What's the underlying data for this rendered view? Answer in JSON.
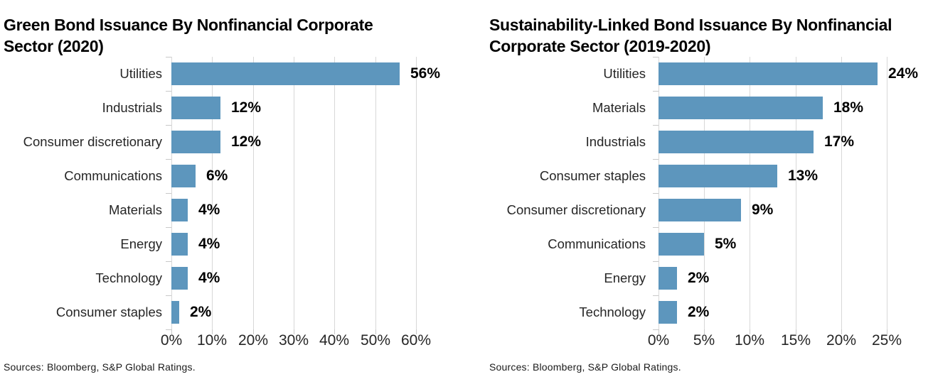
{
  "figure": {
    "background_color": "#ffffff",
    "bar_color": "#5d96bd",
    "grid_color": "#d8d8d8",
    "text_color": "#262626"
  },
  "chart_data": [
    {
      "type": "bar",
      "orientation": "horizontal",
      "title": "Green Bond Issuance By Nonfinancial Corporate Sector (2020)",
      "categories": [
        "Utilities",
        "Industrials",
        "Consumer discretionary",
        "Communications",
        "Materials",
        "Energy",
        "Technology",
        "Consumer staples"
      ],
      "values": [
        56,
        12,
        12,
        6,
        4,
        4,
        4,
        2
      ],
      "value_labels": [
        "56%",
        "12%",
        "12%",
        "6%",
        "4%",
        "4%",
        "4%",
        "2%"
      ],
      "x_tick_values": [
        0,
        10,
        20,
        30,
        40,
        50,
        60
      ],
      "x_tick_labels": [
        "0%",
        "10%",
        "20%",
        "30%",
        "40%",
        "50%",
        "60%"
      ],
      "xlim": [
        0,
        60
      ],
      "grid": true,
      "legend": "none",
      "sources": "Sources: Bloomberg, S&P Global Ratings."
    },
    {
      "type": "bar",
      "orientation": "horizontal",
      "title": "Sustainability-Linked Bond Issuance By Nonfinancial Corporate Sector (2019-2020)",
      "categories": [
        "Utilities",
        "Materials",
        "Industrials",
        "Consumer staples",
        "Consumer discretionary",
        "Communications",
        "Energy",
        "Technology"
      ],
      "values": [
        24,
        18,
        17,
        13,
        9,
        5,
        2,
        2
      ],
      "value_labels": [
        "24%",
        "18%",
        "17%",
        "13%",
        "9%",
        "5%",
        "2%",
        "2%"
      ],
      "x_tick_values": [
        0,
        5,
        10,
        15,
        20,
        25
      ],
      "x_tick_labels": [
        "0%",
        "5%",
        "10%",
        "15%",
        "20%",
        "25%"
      ],
      "xlim": [
        0,
        25
      ],
      "grid": true,
      "legend": "none",
      "sources": "Sources: Bloomberg, S&P Global Ratings."
    }
  ]
}
